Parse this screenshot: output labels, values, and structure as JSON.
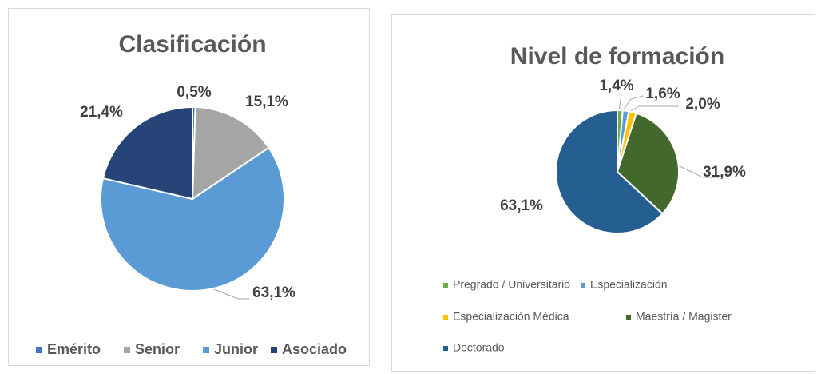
{
  "chart_data": [
    {
      "type": "pie",
      "title": "Clasificación",
      "categories": [
        "Emérito",
        "Senior",
        "Junior",
        "Asociado"
      ],
      "values": [
        0.5,
        15.1,
        63.1,
        21.4
      ],
      "value_labels": [
        "0,5%",
        "15,1%",
        "63,1%",
        "21,4%"
      ],
      "colors": [
        "#4472c4",
        "#a5a5a5",
        "#5b9bd5",
        "#264478"
      ],
      "legend": "bottom"
    },
    {
      "type": "pie",
      "title": "Nivel de formación",
      "categories": [
        "Pregrado / Universitario",
        "Especialización",
        "Especialización Médica",
        "Maestría / Magister",
        "Doctorado"
      ],
      "values": [
        1.4,
        1.6,
        2.0,
        31.9,
        63.1
      ],
      "value_labels": [
        "1,4%",
        "1,6%",
        "2,0%",
        "31,9%",
        "63,1%"
      ],
      "colors": [
        "#70ad47",
        "#5b9bd5",
        "#ffc000",
        "#43682b",
        "#255e91"
      ],
      "legend": "bottom"
    }
  ]
}
